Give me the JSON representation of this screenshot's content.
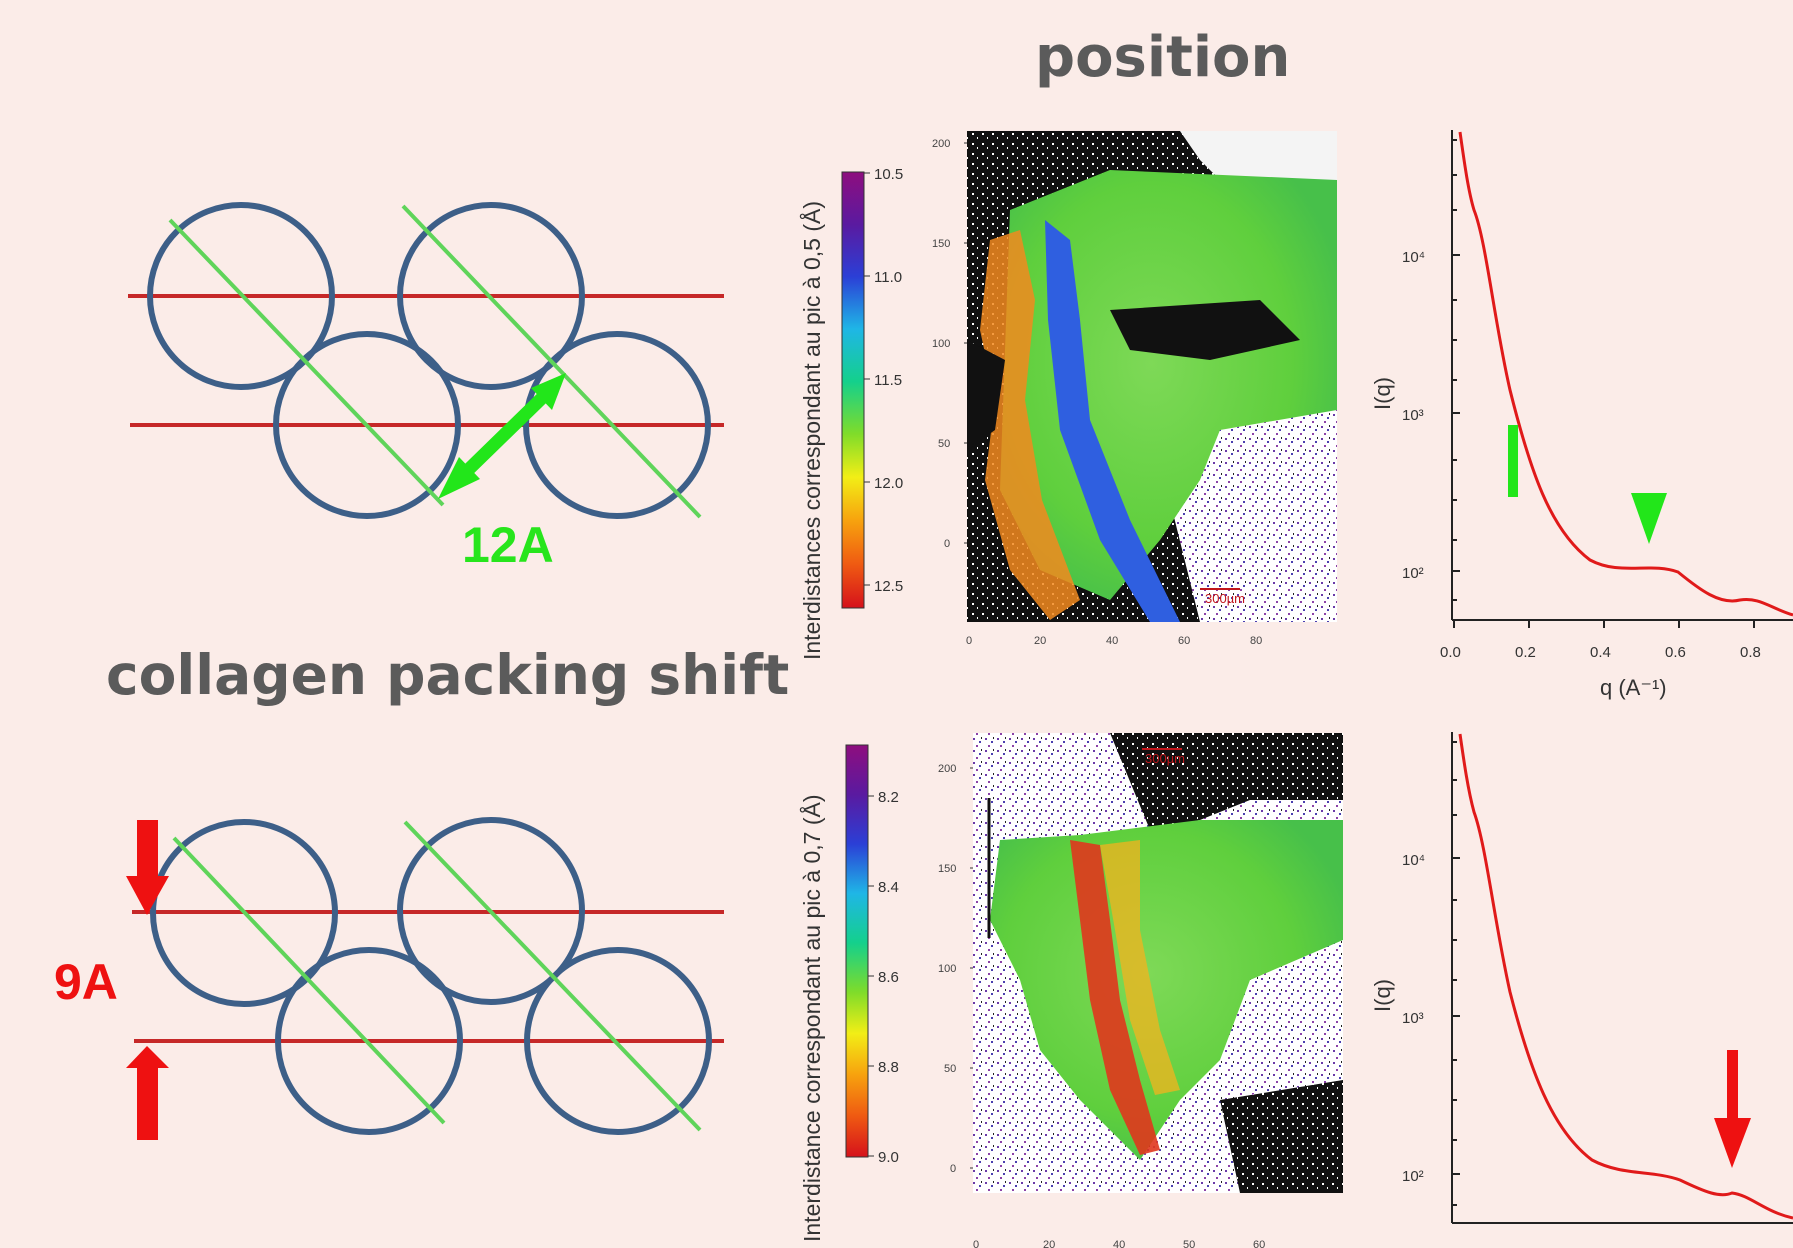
{
  "titles": {
    "top": "position",
    "left": "collagen packing shift"
  },
  "labels": {
    "spacing_top": "12A",
    "spacing_bottom": "9A"
  },
  "colors": {
    "background": "#fbece8",
    "circle": "#3d5f88",
    "row_line": "#c62828",
    "diag_line": "#5fd45a",
    "green_arrow": "#22e61a",
    "red_arrow": "#ee1111",
    "curve": "#e01a1a"
  },
  "maps": [
    {
      "colorbar_label": "Interdistances correspondant au pic à 0,5 (Å)",
      "colorbar_ticks": [
        "10.5",
        "11.0",
        "11.5",
        "12.0",
        "12.5"
      ],
      "y_ticks": [
        "200",
        "150",
        "100",
        "50",
        "0"
      ],
      "x_ticks": [
        "0",
        "20",
        "40",
        "60",
        "80"
      ],
      "scalebar": "300µm"
    },
    {
      "colorbar_label": "Interdistance correspondant au pic à 0,7 (Å)",
      "colorbar_ticks": [
        "8.2",
        "8.4",
        "8.6",
        "8.8",
        "9.0"
      ],
      "y_ticks": [
        "200",
        "150",
        "100",
        "50",
        "0"
      ],
      "x_ticks": [
        "0",
        "20",
        "40",
        "50",
        "60"
      ],
      "scalebar": "300µm"
    }
  ],
  "plots": [
    {
      "ylabel": "I(q)",
      "xlabel": "q (A⁻¹)",
      "x_ticks": [
        "0.0",
        "0.2",
        "0.4",
        "0.6",
        "0.8"
      ],
      "y_ticks": [
        "10⁴",
        "10³",
        "10²"
      ],
      "marker": "green down arrow at q ≈ 0.5"
    },
    {
      "ylabel": "I(q)",
      "y_ticks": [
        "10⁴",
        "10³",
        "10²"
      ],
      "marker": "red down arrow at q ≈ 0.73"
    }
  ]
}
